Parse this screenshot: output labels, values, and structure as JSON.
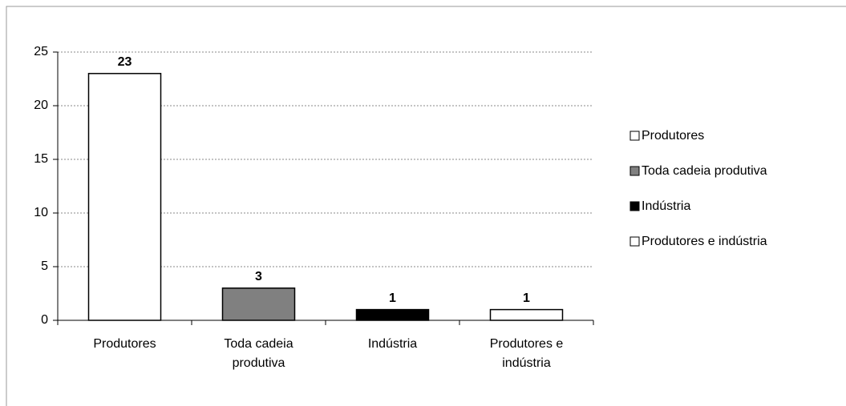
{
  "chart_data": {
    "type": "bar",
    "categories": [
      "Produtores",
      "Toda cadeia produtiva",
      "Indústria",
      "Produtores e indústria"
    ],
    "values": [
      23,
      3,
      1,
      1
    ],
    "colors": [
      "#ffffff",
      "#808080",
      "#000000",
      "#ffffff"
    ],
    "ylim": [
      0,
      25
    ],
    "yticks": [
      0,
      5,
      10,
      15,
      20,
      25
    ],
    "grid": true,
    "legend": "right"
  }
}
